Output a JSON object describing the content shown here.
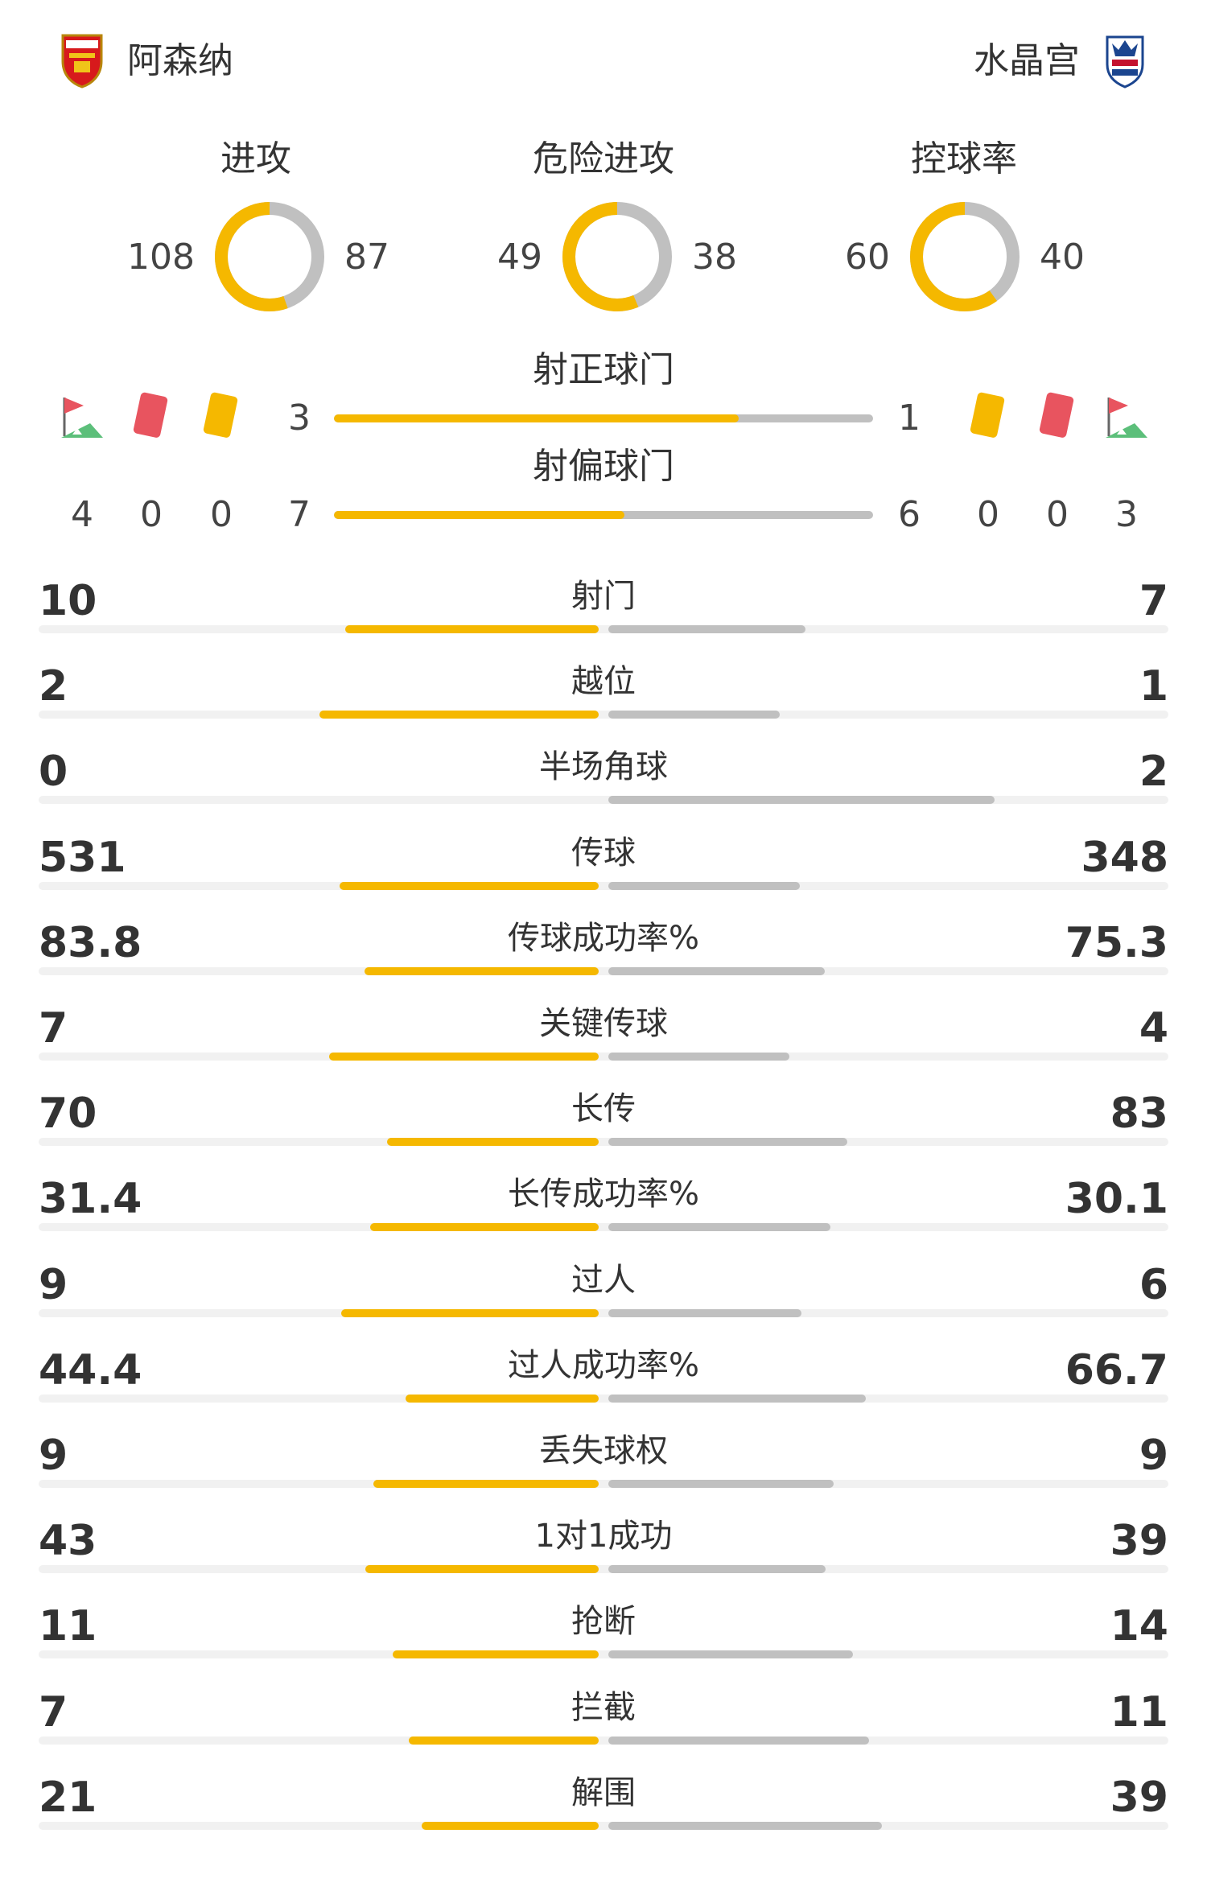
{
  "home": {
    "name": "阿森纳",
    "crest": "arsenal-crest-icon"
  },
  "away": {
    "name": "水晶宫",
    "crest": "crystal-palace-crest-icon"
  },
  "colors": {
    "home": "#f5b800",
    "away": "#c0c0c0",
    "track": "#f1f1f1"
  },
  "metrics": [
    {
      "label": "进攻",
      "home": "108",
      "away": "87"
    },
    {
      "label": "危险进攻",
      "home": "49",
      "away": "38"
    },
    {
      "label": "控球率",
      "home": "60",
      "away": "40"
    }
  ],
  "shots": {
    "on_target": {
      "label": "射正球门",
      "home": "3",
      "away": "1"
    },
    "off_target": {
      "label": "射偏球门",
      "home": "7",
      "away": "6"
    }
  },
  "events": {
    "icons": [
      "corner-flag-icon",
      "red-card-icon",
      "yellow-card-icon"
    ],
    "home": {
      "corners": "4",
      "red_cards": "0",
      "yellow_cards": "0"
    },
    "away": {
      "corners": "3",
      "red_cards": "0",
      "yellow_cards": "0"
    }
  },
  "stats": [
    {
      "label": "射门",
      "home": "10",
      "away": "7"
    },
    {
      "label": "越位",
      "home": "2",
      "away": "1"
    },
    {
      "label": "半场角球",
      "home": "0",
      "away": "2"
    },
    {
      "label": "传球",
      "home": "531",
      "away": "348"
    },
    {
      "label": "传球成功率%",
      "home": "83.8",
      "away": "75.3"
    },
    {
      "label": "关键传球",
      "home": "7",
      "away": "4"
    },
    {
      "label": "长传",
      "home": "70",
      "away": "83"
    },
    {
      "label": "长传成功率%",
      "home": "31.4",
      "away": "30.1"
    },
    {
      "label": "过人",
      "home": "9",
      "away": "6"
    },
    {
      "label": "过人成功率%",
      "home": "44.4",
      "away": "66.7"
    },
    {
      "label": "丢失球权",
      "home": "9",
      "away": "9"
    },
    {
      "label": "1对1成功",
      "home": "43",
      "away": "39"
    },
    {
      "label": "抢断",
      "home": "11",
      "away": "14"
    },
    {
      "label": "拦截",
      "home": "7",
      "away": "11"
    },
    {
      "label": "解围",
      "home": "21",
      "away": "39"
    }
  ]
}
